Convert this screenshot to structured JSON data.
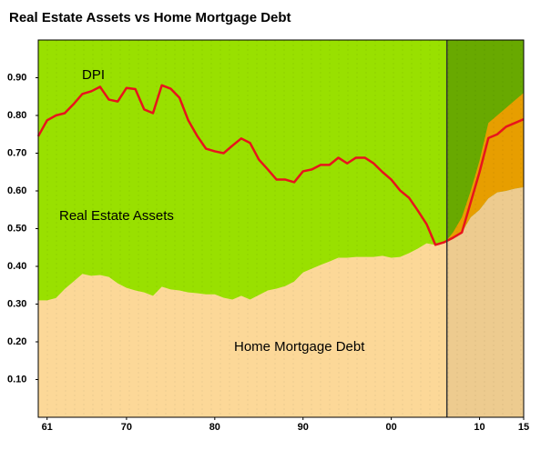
{
  "chart_data": {
    "type": "area-line",
    "title": "Real Estate Assets vs Home Mortgage Debt",
    "annotation": "Real Estate Assets",
    "background_color": "#99e000",
    "forecast_color": "#6fb400",
    "x": [
      1960,
      1961,
      1962,
      1963,
      1964,
      1965,
      1966,
      1967,
      1968,
      1969,
      1970,
      1971,
      1972,
      1973,
      1974,
      1975,
      1976,
      1977,
      1978,
      1979,
      1980,
      1981,
      1982,
      1983,
      1984,
      1985,
      1986,
      1987,
      1988,
      1989,
      1990,
      1991,
      1992,
      1993,
      1994,
      1995,
      1996,
      1997,
      1998,
      1999,
      2000,
      2001,
      2002,
      2003,
      2004,
      2005,
      2006,
      2007,
      2008,
      2009,
      2010,
      2011,
      2012,
      2013,
      2014,
      2015
    ],
    "series": [
      {
        "name": "DPI",
        "color": "#e8141c",
        "values": [
          0.745,
          0.787,
          0.8,
          0.806,
          0.83,
          0.857,
          0.864,
          0.876,
          0.842,
          0.837,
          0.873,
          0.87,
          0.816,
          0.806,
          0.88,
          0.871,
          0.847,
          0.787,
          0.746,
          0.712,
          0.705,
          0.7,
          0.72,
          0.739,
          0.727,
          0.683,
          0.657,
          0.63,
          0.63,
          0.623,
          0.652,
          0.657,
          0.669,
          0.669,
          0.688,
          0.673,
          0.688,
          0.688,
          0.673,
          0.65,
          0.63,
          0.601,
          0.582,
          0.548,
          0.512,
          0.457,
          0.464,
          0.476,
          0.49,
          0.57,
          0.65,
          0.74,
          0.75,
          0.77,
          0.78,
          0.79
        ]
      },
      {
        "name": "Home Mortgage Debt",
        "color": "#fcd898",
        "values": [
          0.31,
          0.31,
          0.316,
          0.34,
          0.36,
          0.38,
          0.375,
          0.377,
          0.372,
          0.355,
          0.343,
          0.336,
          0.331,
          0.322,
          0.346,
          0.339,
          0.336,
          0.331,
          0.329,
          0.326,
          0.326,
          0.317,
          0.312,
          0.322,
          0.312,
          0.324,
          0.336,
          0.341,
          0.348,
          0.36,
          0.384,
          0.394,
          0.404,
          0.413,
          0.423,
          0.423,
          0.425,
          0.425,
          0.425,
          0.428,
          0.423,
          0.425,
          0.435,
          0.447,
          0.461,
          0.457,
          0.461,
          0.476,
          0.49,
          0.53,
          0.55,
          0.58,
          0.596,
          0.6,
          0.606,
          0.61
        ]
      },
      {
        "color": "#f6a800",
        "values": [
          null,
          null,
          null,
          null,
          null,
          null,
          null,
          null,
          null,
          null,
          null,
          null,
          null,
          null,
          null,
          null,
          null,
          null,
          null,
          null,
          null,
          null,
          null,
          null,
          null,
          null,
          null,
          null,
          null,
          null,
          null,
          null,
          null,
          null,
          null,
          null,
          null,
          null,
          null,
          null,
          null,
          null,
          null,
          null,
          null,
          null,
          0.461,
          0.49,
          0.53,
          0.6,
          0.68,
          0.78,
          0.8,
          0.82,
          0.84,
          0.86
        ]
      }
    ],
    "vline": 2006.3,
    "xlim": [
      1960,
      2015
    ],
    "ylim": [
      0,
      1.0
    ],
    "xticks": [
      {
        "value": 1961,
        "label": "61"
      },
      {
        "value": 1970,
        "label": "70"
      },
      {
        "value": 1980,
        "label": "80"
      },
      {
        "value": 1990,
        "label": "90"
      },
      {
        "value": 2000,
        "label": "00"
      },
      {
        "value": 2010,
        "label": "10"
      },
      {
        "value": 2015,
        "label": "15"
      }
    ],
    "yticks": [
      {
        "value": 0.1,
        "label": "0.10"
      },
      {
        "value": 0.2,
        "label": "0.20"
      },
      {
        "value": 0.3,
        "label": "0.30"
      },
      {
        "value": 0.4,
        "label": "0.40"
      },
      {
        "value": 0.5,
        "label": "0.50"
      },
      {
        "value": 0.6,
        "label": "0.60"
      },
      {
        "value": 0.7,
        "label": "0.70"
      },
      {
        "value": 0.8,
        "label": "0.80"
      },
      {
        "value": 0.9,
        "label": "0.90"
      }
    ]
  }
}
